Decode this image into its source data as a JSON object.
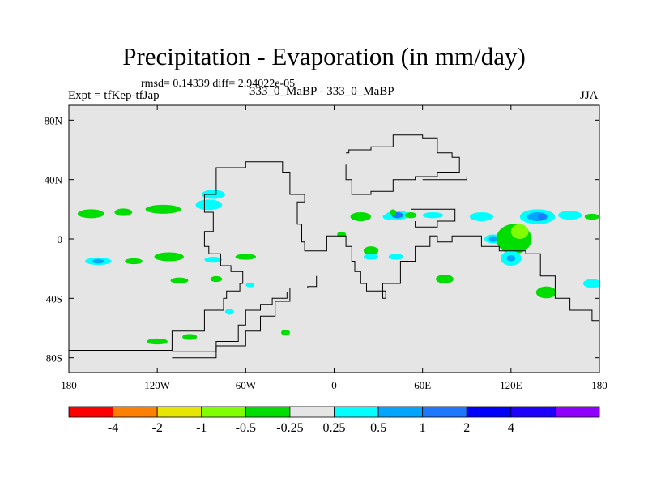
{
  "title": "Precipitation - Evaporation (in mm/day)",
  "stats": "rmsd= 0.14339 diff= 2.94022e-05",
  "left_label": "Expt = tfKep-tfJap",
  "center_label": "333_0_MaBP - 333_0_MaBP",
  "right_label": "JJA",
  "map": {
    "background": "#e5e5e5",
    "lon_ticks": [
      {
        "value": -180,
        "label": "180"
      },
      {
        "value": -120,
        "label": "120W"
      },
      {
        "value": -60,
        "label": "60W"
      },
      {
        "value": 0,
        "label": "0"
      },
      {
        "value": 60,
        "label": "60E"
      },
      {
        "value": 120,
        "label": "120E"
      },
      {
        "value": 180,
        "label": "180"
      }
    ],
    "lat_ticks": [
      {
        "value": 80,
        "label": "80N"
      },
      {
        "value": 40,
        "label": "40N"
      },
      {
        "value": 0,
        "label": "0"
      },
      {
        "value": -40,
        "label": "40S"
      },
      {
        "value": -80,
        "label": "80S"
      }
    ],
    "lon_range": [
      -180,
      180
    ],
    "lat_range": [
      -90,
      90
    ],
    "coast_lon_lat": [
      [
        [
          -184,
          -75
        ],
        [
          -140,
          -75
        ],
        [
          -110,
          -62
        ],
        [
          -88,
          -48
        ],
        [
          -75,
          -40
        ],
        [
          -73,
          -35
        ],
        [
          -64,
          -30
        ],
        [
          -62,
          -22
        ],
        [
          -70,
          -18
        ],
        [
          -77,
          -10
        ],
        [
          -85,
          -5
        ],
        [
          -88,
          5
        ],
        [
          -82,
          18
        ],
        [
          -88,
          30
        ],
        [
          -80,
          48
        ],
        [
          -60,
          52
        ],
        [
          -35,
          45
        ],
        [
          -30,
          30
        ],
        [
          -20,
          25
        ],
        [
          -25,
          10
        ],
        [
          -22,
          -2
        ],
        [
          -20,
          -8
        ],
        [
          -5,
          2
        ],
        [
          8,
          -5
        ],
        [
          12,
          -15
        ],
        [
          14,
          -22
        ],
        [
          18,
          -30
        ],
        [
          22,
          -35
        ],
        [
          35,
          -40
        ],
        [
          33,
          -30
        ],
        [
          45,
          -15
        ],
        [
          55,
          -5
        ],
        [
          65,
          2
        ],
        [
          70,
          -2
        ],
        [
          80,
          2
        ],
        [
          100,
          -5
        ],
        [
          112,
          -8
        ],
        [
          130,
          -10
        ],
        [
          140,
          -25
        ],
        [
          150,
          -40
        ],
        [
          160,
          -48
        ],
        [
          175,
          -55
        ],
        [
          184,
          -63
        ]
      ],
      [
        [
          -110,
          -80
        ],
        [
          -80,
          -72
        ],
        [
          -60,
          -62
        ],
        [
          -50,
          -52
        ],
        [
          -40,
          -42
        ],
        [
          -30,
          -33
        ],
        [
          -18,
          -32
        ],
        [
          -12,
          -25
        ]
      ],
      [
        [
          -110,
          -76
        ],
        [
          -80,
          -69
        ],
        [
          -65,
          -58
        ],
        [
          -60,
          -48
        ],
        [
          -50,
          -44
        ],
        [
          -42,
          -40
        ],
        [
          -32,
          -36
        ]
      ],
      [
        [
          8,
          58
        ],
        [
          10,
          60
        ],
        [
          25,
          62
        ],
        [
          40,
          70
        ],
        [
          60,
          68
        ],
        [
          70,
          58
        ],
        [
          80,
          55
        ],
        [
          85,
          50
        ],
        [
          85,
          45
        ],
        [
          70,
          42
        ],
        [
          55,
          40
        ],
        [
          40,
          32
        ],
        [
          25,
          30
        ],
        [
          12,
          40
        ],
        [
          8,
          50
        ]
      ],
      [
        [
          62,
          40
        ],
        [
          90,
          42
        ],
        [
          90,
          40
        ],
        [
          60,
          40
        ]
      ],
      [
        [
          52,
          20
        ],
        [
          82,
          18
        ],
        [
          82,
          12
        ],
        [
          70,
          8
        ],
        [
          55,
          12
        ]
      ]
    ]
  },
  "colorbar": {
    "colors": [
      "#ff0000",
      "#ff8000",
      "#e6e600",
      "#80ff00",
      "#00dd00",
      "#e5e5e5",
      "#00ffff",
      "#00a5ff",
      "#1e78ff",
      "#0000ff",
      "#1e00ff",
      "#8f00ff"
    ],
    "labels": [
      "-4",
      "-2",
      "-1",
      "-0.5",
      "-0.25",
      "0.25",
      "0.5",
      "1",
      "2",
      "4"
    ]
  },
  "chart_data": {
    "type": "heatmap",
    "title": "Precipitation - Evaporation (in mm/day)",
    "xlabel": "",
    "ylabel": "",
    "xlim": [
      -180,
      180
    ],
    "ylim": [
      -90,
      90
    ],
    "contour_levels": [
      -4,
      -2,
      -1,
      -0.5,
      -0.25,
      0.25,
      0.5,
      1,
      2,
      4
    ],
    "blobs": [
      {
        "lon": -165,
        "lat": 17,
        "rx": 9,
        "ry": 3,
        "value": -0.3
      },
      {
        "lon": -143,
        "lat": 18,
        "rx": 6,
        "ry": 2.5,
        "value": -0.3
      },
      {
        "lon": -116,
        "lat": 20,
        "rx": 12,
        "ry": 3,
        "value": -0.3
      },
      {
        "lon": -85,
        "lat": 23,
        "rx": 9,
        "ry": 3.5,
        "value": 0.3
      },
      {
        "lon": -160,
        "lat": -15,
        "rx": 9,
        "ry": 2.5,
        "value": 0.3
      },
      {
        "lon": -160,
        "lat": -15,
        "rx": 4,
        "ry": 1.5,
        "value": 0.6
      },
      {
        "lon": -136,
        "lat": -15,
        "rx": 6,
        "ry": 2,
        "value": -0.3
      },
      {
        "lon": -112,
        "lat": -12,
        "rx": 10,
        "ry": 3,
        "value": -0.3
      },
      {
        "lon": -82,
        "lat": -14,
        "rx": 6,
        "ry": 2,
        "value": 0.3
      },
      {
        "lon": -60,
        "lat": -12,
        "rx": 7,
        "ry": 2,
        "value": -0.3
      },
      {
        "lon": -105,
        "lat": -28,
        "rx": 6,
        "ry": 2,
        "value": -0.3
      },
      {
        "lon": -80,
        "lat": -27,
        "rx": 4,
        "ry": 2,
        "value": -0.3
      },
      {
        "lon": -57,
        "lat": -31,
        "rx": 3,
        "ry": 1.5,
        "value": 0.3
      },
      {
        "lon": -71,
        "lat": -49,
        "rx": 3,
        "ry": 2,
        "value": 0.3
      },
      {
        "lon": -120,
        "lat": -69,
        "rx": 7,
        "ry": 2,
        "value": -0.3
      },
      {
        "lon": -98,
        "lat": -66,
        "rx": 5,
        "ry": 2,
        "value": -0.3
      },
      {
        "lon": -33,
        "lat": -63,
        "rx": 3,
        "ry": 2,
        "value": -0.3
      },
      {
        "lon": 18,
        "lat": 15,
        "rx": 7,
        "ry": 3,
        "value": -0.3
      },
      {
        "lon": 37,
        "lat": 15,
        "rx": 4,
        "ry": 2,
        "value": 0.3
      },
      {
        "lon": 43,
        "lat": 16,
        "rx": 8,
        "ry": 3,
        "value": 0.3
      },
      {
        "lon": 43,
        "lat": 16,
        "rx": 4,
        "ry": 2,
        "value": 1.5
      },
      {
        "lon": 52,
        "lat": 16,
        "rx": 4,
        "ry": 2,
        "value": -0.3
      },
      {
        "lon": 67,
        "lat": 16,
        "rx": 7,
        "ry": 2,
        "value": 0.3
      },
      {
        "lon": 5,
        "lat": 3,
        "rx": 3,
        "ry": 2,
        "value": -0.3
      },
      {
        "lon": 25,
        "lat": -8,
        "rx": 5,
        "ry": 3,
        "value": -0.3
      },
      {
        "lon": 25,
        "lat": -12,
        "rx": 5,
        "ry": 2,
        "value": 0.3
      },
      {
        "lon": 42,
        "lat": -12,
        "rx": 5,
        "ry": 2,
        "value": 0.3
      },
      {
        "lon": 75,
        "lat": -27,
        "rx": 6,
        "ry": 3,
        "value": -0.3
      },
      {
        "lon": 100,
        "lat": 15,
        "rx": 8,
        "ry": 3,
        "value": 0.3
      },
      {
        "lon": 108,
        "lat": 0,
        "rx": 6,
        "ry": 3,
        "value": 0.3
      },
      {
        "lon": 108,
        "lat": 0,
        "rx": 3,
        "ry": 2,
        "value": 0.6
      },
      {
        "lon": 122,
        "lat": 0,
        "rx": 12,
        "ry": 10,
        "value": -0.4
      },
      {
        "lon": 126,
        "lat": 5,
        "rx": 6,
        "ry": 5,
        "value": -0.8
      },
      {
        "lon": 120,
        "lat": -13,
        "rx": 7,
        "ry": 5,
        "value": 0.3
      },
      {
        "lon": 120,
        "lat": -13,
        "rx": 3,
        "ry": 2,
        "value": 0.6
      },
      {
        "lon": 138,
        "lat": 15,
        "rx": 12,
        "ry": 5,
        "value": 0.3
      },
      {
        "lon": 138,
        "lat": 15,
        "rx": 7,
        "ry": 3,
        "value": 0.7
      },
      {
        "lon": 141,
        "lat": 15,
        "rx": 3,
        "ry": 2,
        "value": 1.5
      },
      {
        "lon": 160,
        "lat": 16,
        "rx": 8,
        "ry": 3,
        "value": 0.3
      },
      {
        "lon": 175,
        "lat": 15,
        "rx": 5,
        "ry": 2,
        "value": -0.3
      },
      {
        "lon": 144,
        "lat": -36,
        "rx": 7,
        "ry": 4,
        "value": -0.3
      },
      {
        "lon": 175,
        "lat": -30,
        "rx": 6,
        "ry": 3,
        "value": 0.3
      },
      {
        "lon": -82,
        "lat": 30,
        "rx": 8,
        "ry": 3,
        "value": 0.3
      },
      {
        "lon": 40,
        "lat": 18,
        "rx": 2,
        "ry": 2,
        "value": -0.3
      }
    ]
  }
}
